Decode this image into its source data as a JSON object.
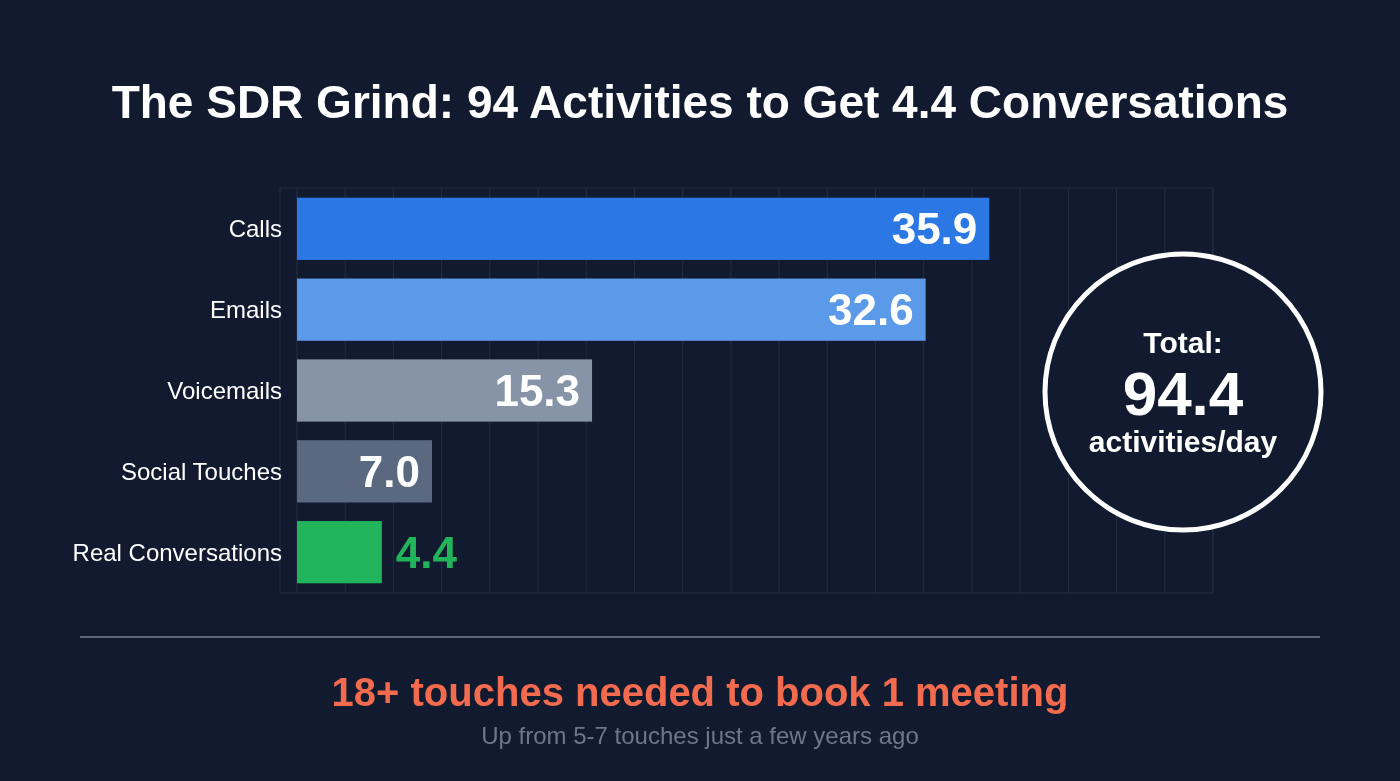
{
  "chart_data": {
    "type": "bar",
    "orientation": "horizontal",
    "title": "The SDR Grind: 94 Activities to Get 4.4 Conversations",
    "categories": [
      "Calls",
      "Emails",
      "Voicemails",
      "Social Touches",
      "Real Conversations"
    ],
    "values": [
      35.9,
      32.6,
      15.3,
      7.0,
      4.4
    ],
    "colors": [
      "#2b78e4",
      "#5a9ae8",
      "#8794a8",
      "#5a6880",
      "#22b45a"
    ],
    "value_labels": [
      "35.9",
      "32.6",
      "15.3",
      "7.0",
      "4.4"
    ],
    "xlim": [
      0,
      47.5
    ],
    "xticks": [
      {
        "value": 0,
        "label": null
      },
      {
        "value": 2.5,
        "label": null
      },
      {
        "value": 5,
        "label": null
      },
      {
        "value": 7.5,
        "label": null
      },
      {
        "value": 10,
        "label": null
      },
      {
        "value": 12.5,
        "label": null
      },
      {
        "value": 15,
        "label": null
      },
      {
        "value": 17.5,
        "label": null
      },
      {
        "value": 20,
        "label": null
      },
      {
        "value": 22.5,
        "label": null
      },
      {
        "value": 25,
        "label": null
      },
      {
        "value": 27.5,
        "label": null
      },
      {
        "value": 30,
        "label": null
      },
      {
        "value": 32.5,
        "label": null
      },
      {
        "value": 35,
        "label": null
      },
      {
        "value": 37.5,
        "label": null
      },
      {
        "value": 40,
        "label": null
      },
      {
        "value": 42.5,
        "label": null
      },
      {
        "value": 45,
        "label": null
      },
      {
        "value": 47.5,
        "label": null
      }
    ],
    "grid": "x",
    "tick_labels": "y",
    "annotations": [
      "Total:",
      "94.4",
      "activities/day",
      "18+ touches needed to book 1 meeting",
      "Up from 5-7 touches just a few years ago"
    ]
  }
}
